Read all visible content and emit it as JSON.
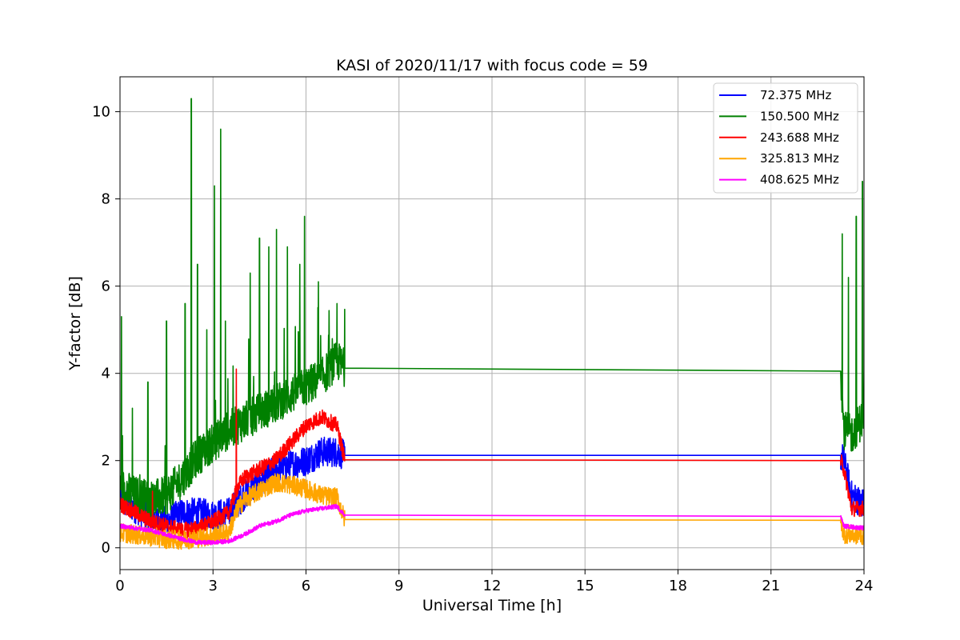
{
  "chart_data": {
    "type": "line",
    "title": "KASI of 2020/11/17 with focus code = 59",
    "xlabel": "Universal Time [h]",
    "ylabel": "Y-factor [dB]",
    "xlim": [
      0,
      24
    ],
    "ylim": [
      -0.5,
      10.8
    ],
    "xticks": [
      0,
      3,
      6,
      9,
      12,
      15,
      18,
      21,
      24
    ],
    "yticks": [
      0,
      2,
      4,
      6,
      8,
      10
    ],
    "grid": true,
    "legend_position": "top-right",
    "series": [
      {
        "name": " 72.375 MHz",
        "color": "#0000ff",
        "x": [
          0,
          0.5,
          1.0,
          1.5,
          2.0,
          2.5,
          3.0,
          3.5,
          4.0,
          4.5,
          5.0,
          5.5,
          6.0,
          6.5,
          7.0,
          7.25,
          23.25,
          23.35,
          23.6,
          24
        ],
        "y": [
          1.1,
          0.9,
          0.7,
          0.6,
          0.8,
          0.8,
          0.75,
          0.8,
          1.2,
          1.5,
          1.8,
          1.9,
          2.0,
          2.2,
          2.2,
          2.12,
          2.12,
          2.0,
          1.2,
          1.0
        ],
        "noise": 0.35
      },
      {
        "name": "150.500 MHz",
        "color": "#008000",
        "x": [
          0,
          0.5,
          1.0,
          1.5,
          2.0,
          2.5,
          3.0,
          3.5,
          4.0,
          4.5,
          5.0,
          5.5,
          6.0,
          6.5,
          7.0,
          7.25,
          23.25,
          23.35,
          23.6,
          24
        ],
        "y": [
          1.4,
          1.2,
          1.1,
          1.2,
          1.6,
          2.1,
          2.4,
          2.7,
          2.9,
          3.1,
          3.3,
          3.5,
          3.7,
          3.9,
          4.3,
          4.12,
          4.05,
          2.7,
          2.6,
          3.0
        ],
        "noise": 0.45,
        "spikes": [
          [
            0.05,
            5.3
          ],
          [
            0.4,
            3.2
          ],
          [
            0.9,
            3.8
          ],
          [
            1.5,
            5.2
          ],
          [
            2.1,
            5.6
          ],
          [
            2.3,
            10.3
          ],
          [
            2.5,
            6.5
          ],
          [
            2.8,
            5.0
          ],
          [
            3.05,
            8.3
          ],
          [
            3.25,
            9.6
          ],
          [
            3.4,
            5.2
          ],
          [
            4.2,
            6.3
          ],
          [
            4.5,
            7.1
          ],
          [
            4.8,
            6.9
          ],
          [
            5.05,
            7.3
          ],
          [
            5.4,
            6.9
          ],
          [
            5.8,
            6.5
          ],
          [
            5.95,
            7.6
          ],
          [
            6.4,
            6.1
          ],
          [
            7.0,
            5.6
          ],
          [
            23.3,
            7.2
          ],
          [
            23.5,
            6.2
          ],
          [
            23.75,
            7.6
          ],
          [
            23.95,
            8.4
          ]
        ]
      },
      {
        "name": "243.688 MHz",
        "color": "#ff0000",
        "x": [
          0,
          0.5,
          1.0,
          1.5,
          2.0,
          2.5,
          3.0,
          3.5,
          3.8,
          4.0,
          4.5,
          5.0,
          5.5,
          6.0,
          6.5,
          7.0,
          7.25,
          23.25,
          23.35,
          23.6,
          24
        ],
        "y": [
          1.0,
          0.8,
          0.6,
          0.5,
          0.4,
          0.45,
          0.6,
          0.8,
          1.4,
          1.6,
          1.8,
          2.0,
          2.4,
          2.8,
          3.0,
          2.8,
          2.02,
          2.0,
          1.8,
          0.9,
          0.9
        ],
        "noise": 0.18,
        "spikes": [
          [
            3.75,
            4.1
          ],
          [
            1.05,
            1.3
          ]
        ]
      },
      {
        "name": "325.813 MHz",
        "color": "#ffa500",
        "x": [
          0,
          0.5,
          1.0,
          1.5,
          2.0,
          2.5,
          3.0,
          3.5,
          3.8,
          4.0,
          4.5,
          5.0,
          5.5,
          6.0,
          6.5,
          7.0,
          7.25,
          23.25,
          23.35,
          23.6,
          24
        ],
        "y": [
          0.35,
          0.3,
          0.25,
          0.2,
          0.18,
          0.22,
          0.28,
          0.35,
          0.9,
          1.1,
          1.3,
          1.5,
          1.45,
          1.35,
          1.2,
          1.15,
          0.65,
          0.63,
          0.32,
          0.3,
          0.28
        ],
        "noise": 0.22
      },
      {
        "name": "408.625 MHz",
        "color": "#ff00ff",
        "x": [
          0,
          0.5,
          1.0,
          1.5,
          2.0,
          2.5,
          3.0,
          3.5,
          4.0,
          4.5,
          5.0,
          5.5,
          6.0,
          6.5,
          7.0,
          7.25,
          23.25,
          23.35,
          23.6,
          24
        ],
        "y": [
          0.5,
          0.45,
          0.4,
          0.3,
          0.2,
          0.12,
          0.12,
          0.15,
          0.3,
          0.5,
          0.6,
          0.75,
          0.85,
          0.9,
          0.95,
          0.75,
          0.72,
          0.5,
          0.48,
          0.45
        ],
        "noise": 0.05
      }
    ]
  }
}
